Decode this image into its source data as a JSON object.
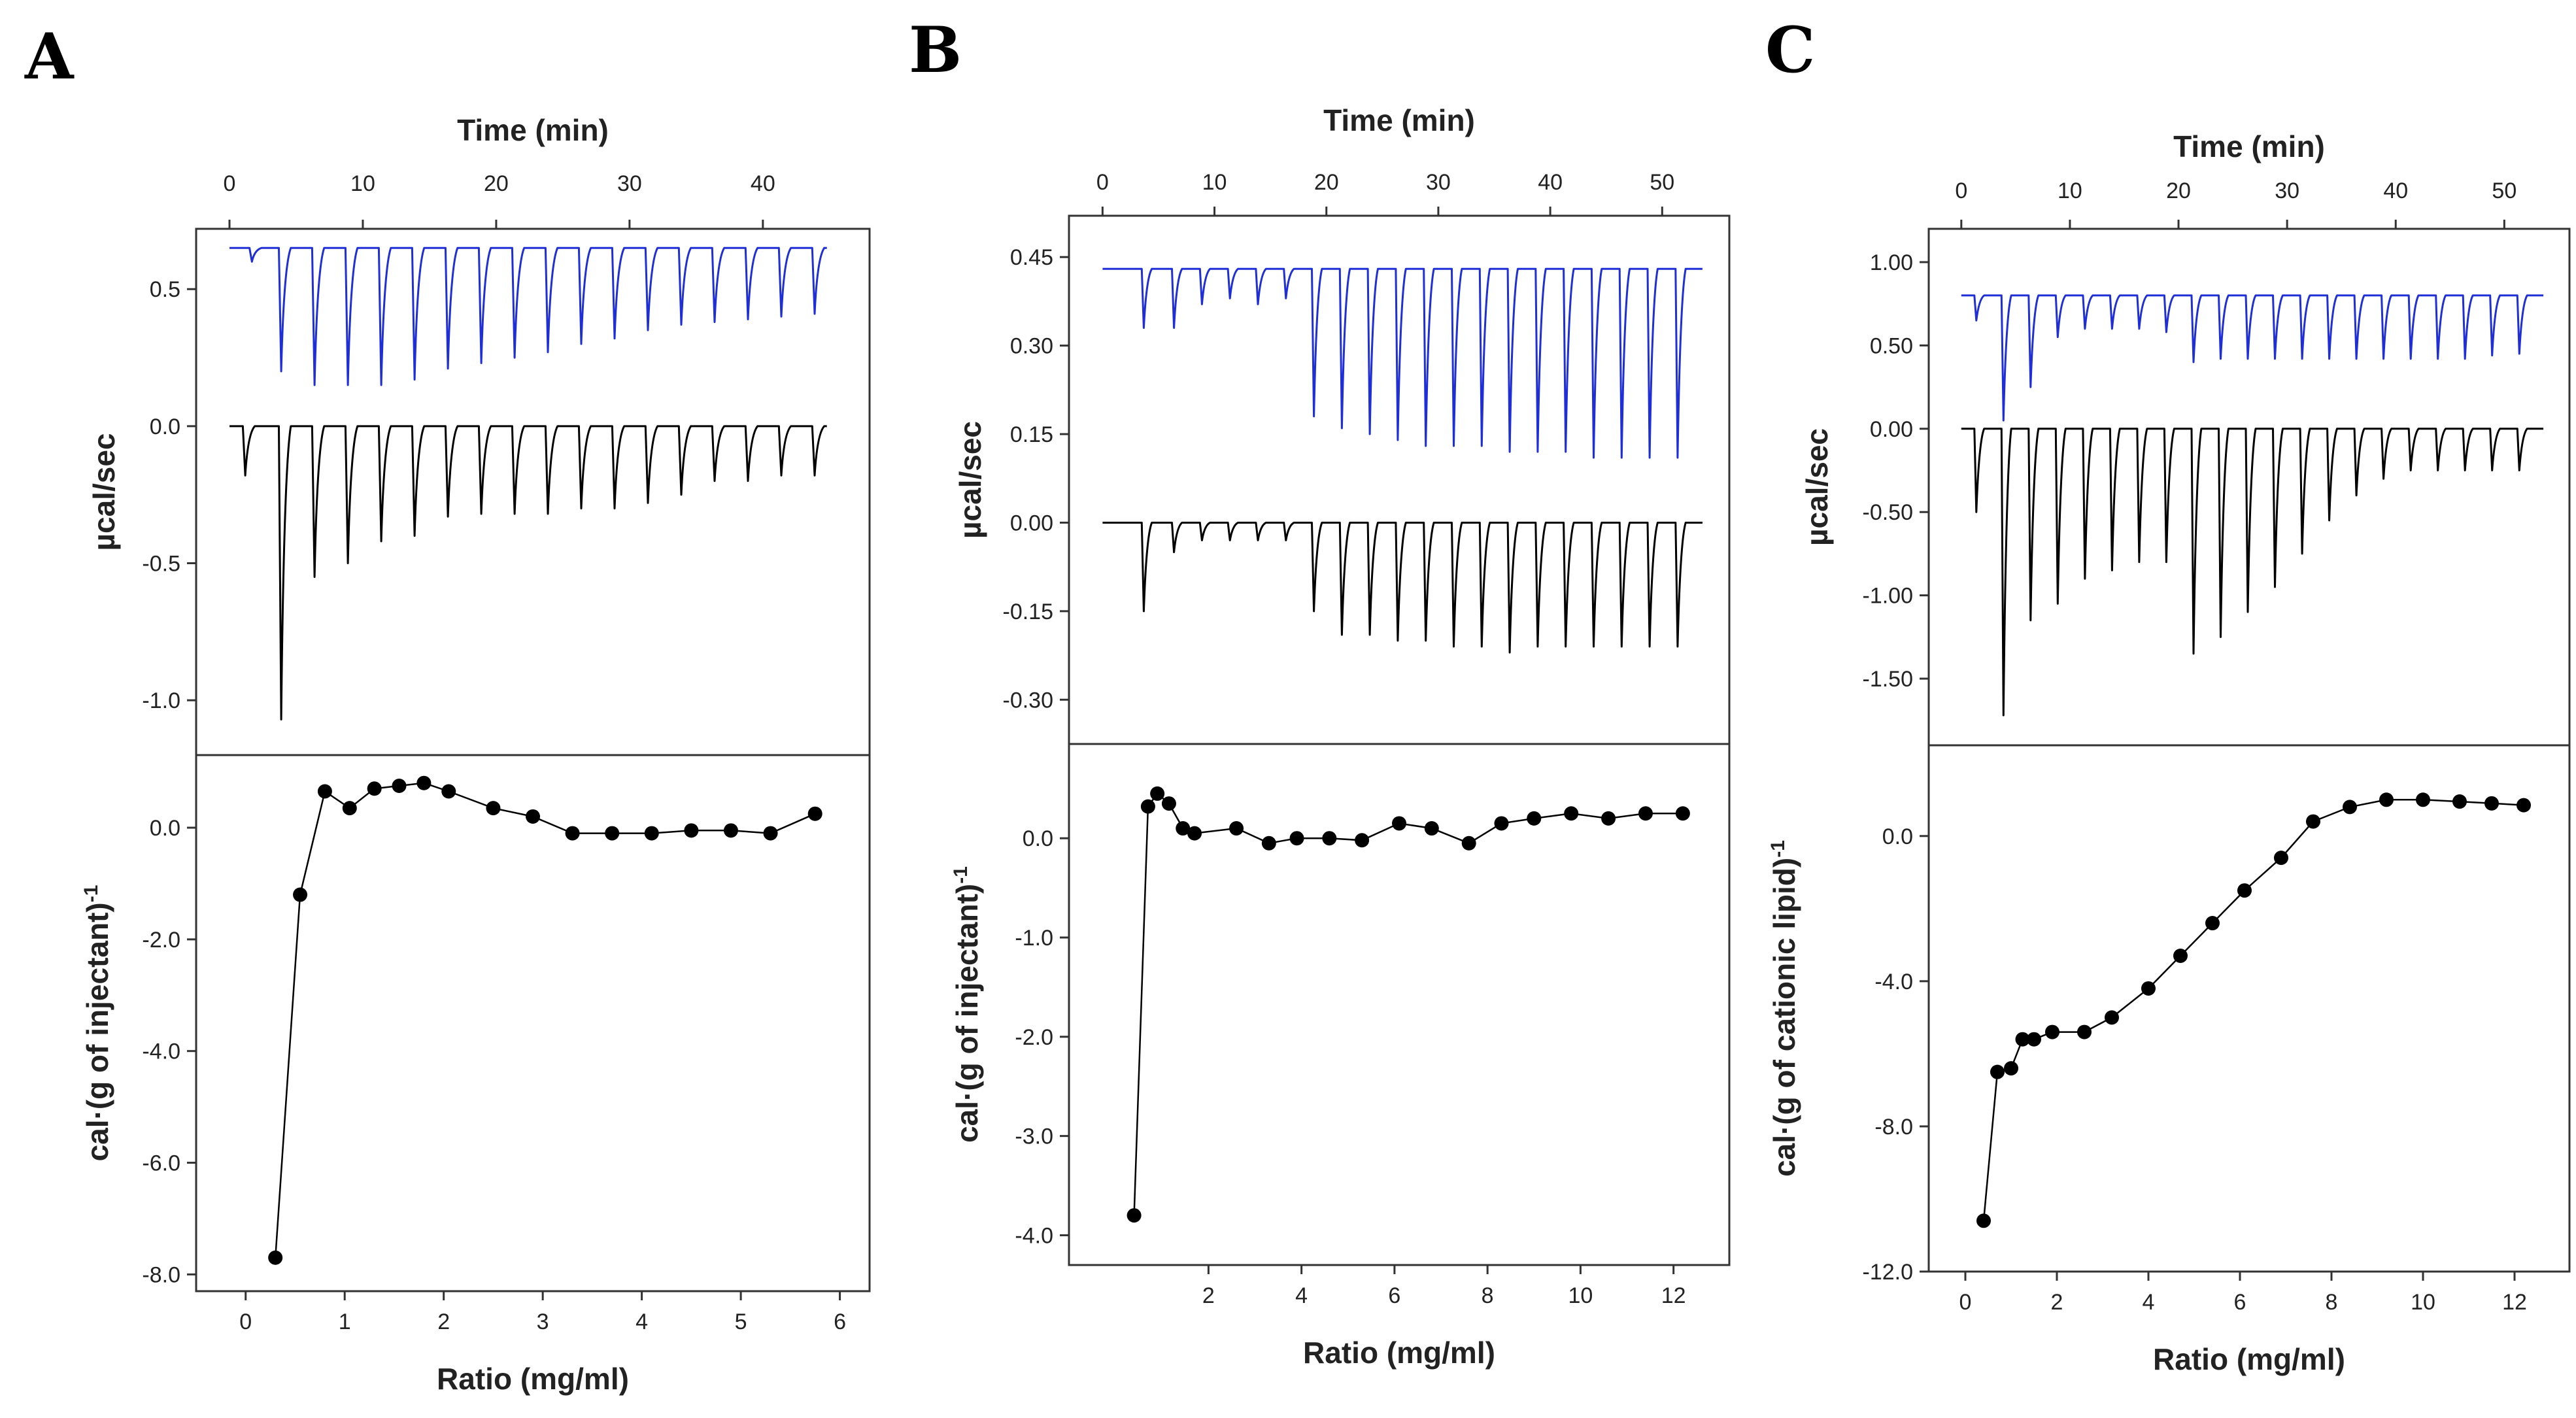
{
  "chart_data": [
    {
      "panel": "A",
      "type": "line",
      "top": {
        "xlabel": "Time (min)",
        "ylabel": "µcal/sec",
        "xlim": [
          -2.5,
          48
        ],
        "ylim": [
          -1.2,
          0.72
        ],
        "xticks": [
          0,
          10,
          20,
          30,
          40
        ],
        "yticks": [
          0.5,
          0.0,
          -0.5,
          -1.0
        ],
        "ytick_labels": [
          "0.5",
          "0.0",
          "-0.5",
          "-1.0"
        ],
        "series": [
          {
            "name": "blue trace",
            "color": "#1f2fd8",
            "baseline": 0.65,
            "times": [
              1.5,
              3.7,
              6.2,
              8.7,
              11.2,
              13.7,
              16.2,
              18.7,
              21.2,
              23.7,
              26.2,
              28.7,
              31.2,
              33.7,
              36.2,
              38.7,
              41.2,
              43.7
            ],
            "depths": [
              0.05,
              0.45,
              0.5,
              0.5,
              0.5,
              0.48,
              0.44,
              0.42,
              0.4,
              0.38,
              0.35,
              0.33,
              0.3,
              0.28,
              0.27,
              0.26,
              0.25,
              0.24
            ]
          },
          {
            "name": "black trace",
            "color": "#000000",
            "baseline": 0.0,
            "times": [
              1.0,
              3.7,
              6.2,
              8.7,
              11.2,
              13.7,
              16.2,
              18.7,
              21.2,
              23.7,
              26.2,
              28.7,
              31.2,
              33.7,
              36.2,
              38.7,
              41.2,
              43.7
            ],
            "depths": [
              0.18,
              1.07,
              0.55,
              0.5,
              0.42,
              0.4,
              0.33,
              0.32,
              0.32,
              0.32,
              0.3,
              0.3,
              0.28,
              0.25,
              0.2,
              0.2,
              0.18,
              0.18
            ]
          }
        ]
      },
      "bottom": {
        "xlabel": "Ratio (mg/ml)",
        "ylabel": "cal·(g of injectant)-1",
        "xlim": [
          -0.5,
          6.3
        ],
        "ylim": [
          -8.3,
          1.3
        ],
        "xticks": [
          0,
          1,
          2,
          3,
          4,
          5,
          6
        ],
        "yticks": [
          0,
          -2,
          -4,
          -6,
          -8
        ],
        "ytick_labels": [
          "0.0",
          "-2.0",
          "-4.0",
          "-6.0",
          "-8.0"
        ],
        "x": [
          0.3,
          0.55,
          0.8,
          1.05,
          1.3,
          1.55,
          1.8,
          2.05,
          2.5,
          2.9,
          3.3,
          3.7,
          4.1,
          4.5,
          4.9,
          5.3,
          5.75
        ],
        "y": [
          -7.7,
          -1.2,
          0.65,
          0.35,
          0.7,
          0.75,
          0.8,
          0.65,
          0.35,
          0.2,
          -0.1,
          -0.1,
          -0.1,
          -0.05,
          -0.05,
          -0.1,
          0.25
        ]
      }
    },
    {
      "panel": "B",
      "type": "line",
      "top": {
        "xlabel": "Time (min)",
        "ylabel": "µcal/sec",
        "xlim": [
          -3,
          56
        ],
        "ylim": [
          -0.375,
          0.52
        ],
        "xticks": [
          0,
          10,
          20,
          30,
          40,
          50
        ],
        "yticks": [
          0.45,
          0.3,
          0.15,
          0.0,
          -0.15,
          -0.3
        ],
        "ytick_labels": [
          "0.45",
          "0.30",
          "0.15",
          "0.00",
          "-0.15",
          "-0.30"
        ],
        "series": [
          {
            "name": "blue trace",
            "color": "#1f2fd8",
            "baseline": 0.43,
            "times": [
              3.5,
              6.2,
              8.7,
              11.2,
              13.7,
              16.2,
              18.7,
              21.2,
              23.7,
              26.2,
              28.7,
              31.2,
              33.7,
              36.2,
              38.7,
              41.2,
              43.7,
              46.2,
              48.7,
              51.2
            ],
            "depths": [
              0.1,
              0.1,
              0.06,
              0.05,
              0.06,
              0.05,
              0.25,
              0.27,
              0.28,
              0.29,
              0.3,
              0.3,
              0.3,
              0.31,
              0.31,
              0.31,
              0.32,
              0.32,
              0.32,
              0.32
            ]
          },
          {
            "name": "black trace",
            "color": "#000000",
            "baseline": 0.0,
            "times": [
              3.5,
              6.2,
              8.7,
              11.2,
              13.7,
              16.2,
              18.7,
              21.2,
              23.7,
              26.2,
              28.7,
              31.2,
              33.7,
              36.2,
              38.7,
              41.2,
              43.7,
              46.2,
              48.7,
              51.2
            ],
            "depths": [
              0.15,
              0.05,
              0.03,
              0.03,
              0.03,
              0.03,
              0.15,
              0.19,
              0.19,
              0.2,
              0.2,
              0.21,
              0.21,
              0.22,
              0.21,
              0.21,
              0.21,
              0.21,
              0.21,
              0.21
            ]
          }
        ]
      },
      "bottom": {
        "xlabel": "Ratio (mg/ml)",
        "ylabel": "cal·(g of injectant)-1",
        "xlim": [
          -1.0,
          13.2
        ],
        "ylim": [
          -4.3,
          0.95
        ],
        "xticks": [
          2,
          4,
          6,
          8,
          10,
          12
        ],
        "yticks": [
          0,
          -1,
          -2,
          -3,
          -4
        ],
        "ytick_labels": [
          "0.0",
          "-1.0",
          "-2.0",
          "-3.0",
          "-4.0"
        ],
        "x": [
          0.4,
          0.7,
          0.9,
          1.15,
          1.45,
          1.7,
          2.6,
          3.3,
          3.9,
          4.6,
          5.3,
          6.1,
          6.8,
          7.6,
          8.3,
          9.0,
          9.8,
          10.6,
          11.4,
          12.2
        ],
        "y": [
          -3.8,
          0.32,
          0.45,
          0.35,
          0.1,
          0.05,
          0.1,
          -0.05,
          0.0,
          0.0,
          -0.02,
          0.15,
          0.1,
          -0.05,
          0.15,
          0.2,
          0.25,
          0.2,
          0.25,
          0.25
        ]
      }
    },
    {
      "panel": "C",
      "type": "line",
      "top": {
        "xlabel": "Time (min)",
        "ylabel": "µcal/sec",
        "xlim": [
          -3,
          56
        ],
        "ylim": [
          -1.9,
          1.2
        ],
        "xticks": [
          0,
          10,
          20,
          30,
          40,
          50
        ],
        "yticks": [
          1.0,
          0.5,
          0.0,
          -0.5,
          -1.0,
          -1.5
        ],
        "ytick_labels": [
          "1.00",
          "0.50",
          "0.00",
          "-0.50",
          "-1.00",
          "-1.50"
        ],
        "series": [
          {
            "name": "blue trace",
            "color": "#1f2fd8",
            "baseline": 0.8,
            "times": [
              1.2,
              3.7,
              6.2,
              8.7,
              11.2,
              13.7,
              16.2,
              18.7,
              21.2,
              23.7,
              26.2,
              28.7,
              31.2,
              33.7,
              36.2,
              38.7,
              41.2,
              43.7,
              46.2,
              48.7,
              51.2
            ],
            "depths": [
              0.15,
              0.75,
              0.55,
              0.25,
              0.2,
              0.2,
              0.2,
              0.22,
              0.4,
              0.38,
              0.38,
              0.38,
              0.38,
              0.38,
              0.38,
              0.38,
              0.38,
              0.38,
              0.38,
              0.36,
              0.35
            ]
          },
          {
            "name": "black trace",
            "color": "#000000",
            "baseline": 0.0,
            "times": [
              1.2,
              3.7,
              6.2,
              8.7,
              11.2,
              13.7,
              16.2,
              18.7,
              21.2,
              23.7,
              26.2,
              28.7,
              31.2,
              33.7,
              36.2,
              38.7,
              41.2,
              43.7,
              46.2,
              48.7,
              51.2
            ],
            "depths": [
              0.5,
              1.72,
              1.15,
              1.05,
              0.9,
              0.85,
              0.8,
              0.8,
              1.35,
              1.25,
              1.1,
              0.95,
              0.75,
              0.55,
              0.4,
              0.3,
              0.25,
              0.25,
              0.25,
              0.25,
              0.25
            ]
          }
        ]
      },
      "bottom": {
        "xlabel": "Ratio (mg/ml)",
        "ylabel": "cal·(g of cationic lipid)-1",
        "xlim": [
          -0.8,
          13.2
        ],
        "ylim": [
          -12.0,
          2.5
        ],
        "xticks": [
          0,
          2,
          4,
          6,
          8,
          10,
          12
        ],
        "yticks": [
          0,
          -4,
          -8,
          -12
        ],
        "ytick_labels": [
          "0.0",
          "-4.0",
          "-8.0",
          "-12.0"
        ],
        "x": [
          0.4,
          0.7,
          1.0,
          1.25,
          1.5,
          1.9,
          2.6,
          3.2,
          4.0,
          4.7,
          5.4,
          6.1,
          6.9,
          7.6,
          8.4,
          9.2,
          10.0,
          10.8,
          11.5,
          12.2
        ],
        "y": [
          -10.6,
          -6.5,
          -6.4,
          -5.6,
          -5.6,
          -5.4,
          -5.4,
          -5.0,
          -4.2,
          -3.3,
          -2.4,
          -1.5,
          -0.6,
          0.4,
          0.8,
          1.0,
          1.0,
          0.95,
          0.9,
          0.85
        ]
      }
    }
  ],
  "panels": [
    "A",
    "B",
    "C"
  ]
}
